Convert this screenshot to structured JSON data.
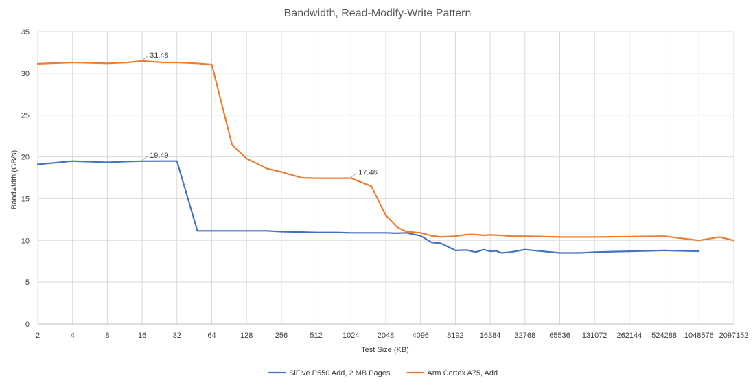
{
  "chart_data": {
    "type": "line",
    "title": "Bandwidth, Read-Modify-Write Pattern",
    "xlabel": "Test Size (KB)",
    "ylabel": "Bandwidth (GB/s)",
    "x_scale": "log2",
    "xlim": [
      2,
      2097152
    ],
    "ylim": [
      0,
      35
    ],
    "y_ticks": [
      0,
      5,
      10,
      15,
      20,
      25,
      30,
      35
    ],
    "x_ticks": [
      2,
      4,
      8,
      16,
      32,
      64,
      128,
      256,
      512,
      1024,
      2048,
      4096,
      8192,
      16384,
      32768,
      65536,
      131072,
      262144,
      524288,
      1048576,
      2097152
    ],
    "grid": true,
    "legend_position": "bottom",
    "series": [
      {
        "name": "SiFive P550 Add, 2 MB Pages",
        "color": "#4472c4",
        "x": [
          2,
          4,
          8,
          12,
          16,
          24,
          32,
          48,
          64,
          96,
          128,
          192,
          256,
          384,
          512,
          768,
          1024,
          1536,
          2048,
          2560,
          3072,
          4096,
          5120,
          6144,
          8192,
          10240,
          12288,
          14336,
          16384,
          18432,
          20480,
          24576,
          32768,
          65536,
          98304,
          131072,
          262144,
          524288,
          1048576
        ],
        "y": [
          19.1,
          19.5,
          19.35,
          19.45,
          19.49,
          19.5,
          19.5,
          11.15,
          11.15,
          11.15,
          11.15,
          11.15,
          11.05,
          11.0,
          10.95,
          10.95,
          10.9,
          10.9,
          10.9,
          10.85,
          10.9,
          10.55,
          9.75,
          9.65,
          8.8,
          8.85,
          8.6,
          8.9,
          8.7,
          8.75,
          8.5,
          8.6,
          8.9,
          8.5,
          8.5,
          8.6,
          8.7,
          8.8,
          8.7
        ]
      },
      {
        "name": "Arm Cortex A75, Add",
        "color": "#ed7d31",
        "x": [
          2,
          4,
          8,
          12,
          16,
          24,
          32,
          48,
          64,
          96,
          128,
          192,
          256,
          384,
          512,
          768,
          1024,
          1536,
          2048,
          2560,
          3072,
          4096,
          5120,
          6144,
          8192,
          10240,
          12288,
          14336,
          16384,
          20480,
          24576,
          32768,
          65536,
          98304,
          131072,
          262144,
          524288,
          1048576,
          1572864,
          2097152
        ],
        "y": [
          31.15,
          31.3,
          31.2,
          31.3,
          31.48,
          31.3,
          31.3,
          31.2,
          31.05,
          21.4,
          19.8,
          18.6,
          18.2,
          17.5,
          17.45,
          17.45,
          17.46,
          16.5,
          13.0,
          11.6,
          11.05,
          10.9,
          10.55,
          10.4,
          10.5,
          10.7,
          10.7,
          10.6,
          10.65,
          10.6,
          10.5,
          10.5,
          10.4,
          10.4,
          10.4,
          10.45,
          10.5,
          10.0,
          10.4,
          10.0
        ]
      }
    ],
    "annotations": [
      {
        "series": 1,
        "x": 16,
        "y": 31.48,
        "text": "31.48"
      },
      {
        "series": 0,
        "x": 16,
        "y": 19.49,
        "text": "19.49"
      },
      {
        "series": 1,
        "x": 1024,
        "y": 17.46,
        "text": "17.46"
      }
    ]
  }
}
